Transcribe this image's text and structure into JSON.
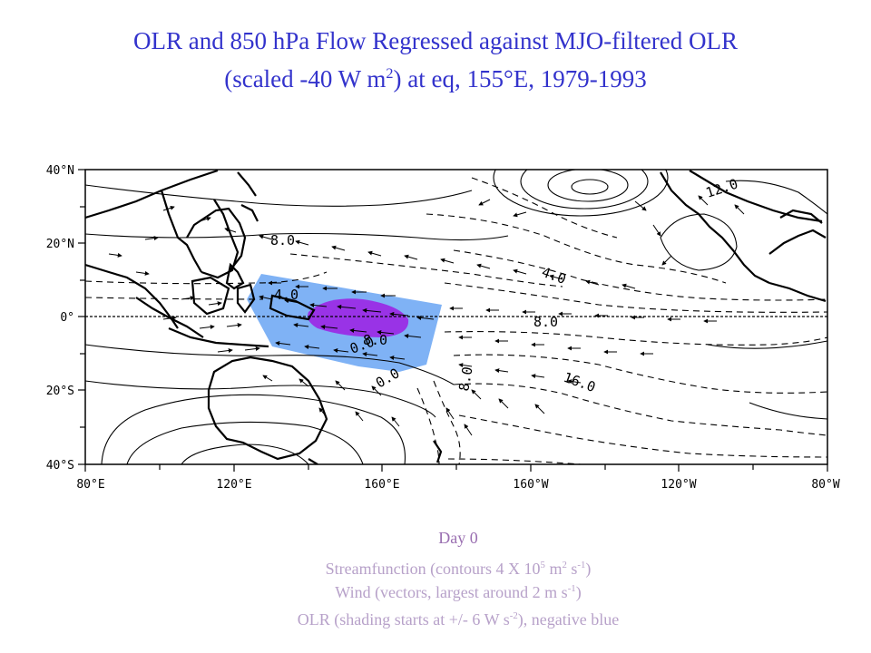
{
  "title": {
    "line1": "OLR and 850 hPa Flow Regressed against MJO-filtered OLR",
    "line2_pre": "(scaled -40 W m",
    "line2_sup": "2",
    "line2_post": ") at eq, 155°E, 1979-1993"
  },
  "map": {
    "lat_labels": [
      "40°N",
      "20°N",
      "0°",
      "20°S",
      "40°S"
    ],
    "lon_labels": [
      "80°E",
      "120°E",
      "160°E",
      "160°W",
      "120°W",
      "80°W"
    ],
    "contour_labels": [
      "8.0",
      "12.0",
      "4.0",
      "8.0",
      "4.0",
      "16.0",
      "8.0",
      "0.0",
      "0.0",
      "8.0"
    ],
    "colors": {
      "negative_olr_light": "#7fb2f5",
      "negative_olr_strong": "#9933e6",
      "land": "#000000",
      "contours": "#000000"
    }
  },
  "caption": {
    "day": "Day 0",
    "line1_pre": "Streamfunction (contours 4 X 10",
    "line1_sup1": "5",
    "line1_mid": " m",
    "line1_sup2": "2",
    "line1_mid2": " s",
    "line1_sup3": "-1",
    "line1_post": ")",
    "line2_pre": "Wind (vectors, largest around 2 m s",
    "line2_sup": "-1",
    "line2_post": ")",
    "line3_pre": "OLR (shading starts at +/- 6 W s",
    "line3_sup": "-2",
    "line3_post": "), negative blue"
  }
}
